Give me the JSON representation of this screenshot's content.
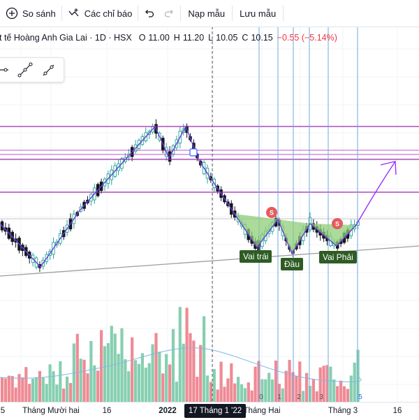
{
  "toolbar": {
    "compare_label": "So sánh",
    "indicators_label": "Các chỉ báo",
    "load_template_label": "Nạp mẫu",
    "save_template_label": "Lưu mẫu"
  },
  "legend": {
    "title": "t tế Hoàng Anh Gia Lai · 1D · HSX",
    "open_label": "O",
    "open": "11.00",
    "high_label": "H",
    "high": "11.20",
    "low_label": "L",
    "low": "10.05",
    "close_label": "C",
    "close": "10.15",
    "change": "−0.55 (−5.14%)"
  },
  "pattern_labels": {
    "left_shoulder": "Vai trái",
    "head": "Đầu",
    "right_shoulder": "Vai Phải"
  },
  "marker_letter": "S",
  "time_axis": {
    "ticks": [
      "Tháng Mười hai",
      "16",
      "2022",
      "Tháng Hai",
      "Tháng 3",
      "16"
    ],
    "cursor_date": "17 Tháng 1 '22",
    "partial_left": "5",
    "small_numbers": [
      "0",
      "1",
      "2",
      "3",
      "5"
    ]
  },
  "colors": {
    "up": "#26a69a",
    "down": "#131722",
    "vol_up": "#86cfb0",
    "vol_down": "#ef8a94",
    "pattern_line": "#6a3fd0",
    "level_line": "#9c27b0",
    "vertical_line": "#6fa8dc",
    "ma_line": "#7fb8e8",
    "pattern_fill": "#8fce7a",
    "marker": "#e35d5d"
  },
  "icons": [
    "plus-circle-icon",
    "indicators-icon",
    "undo-icon",
    "redo-icon",
    "line-tool-icon",
    "path-tool-icon",
    "ray-tool-icon"
  ]
}
